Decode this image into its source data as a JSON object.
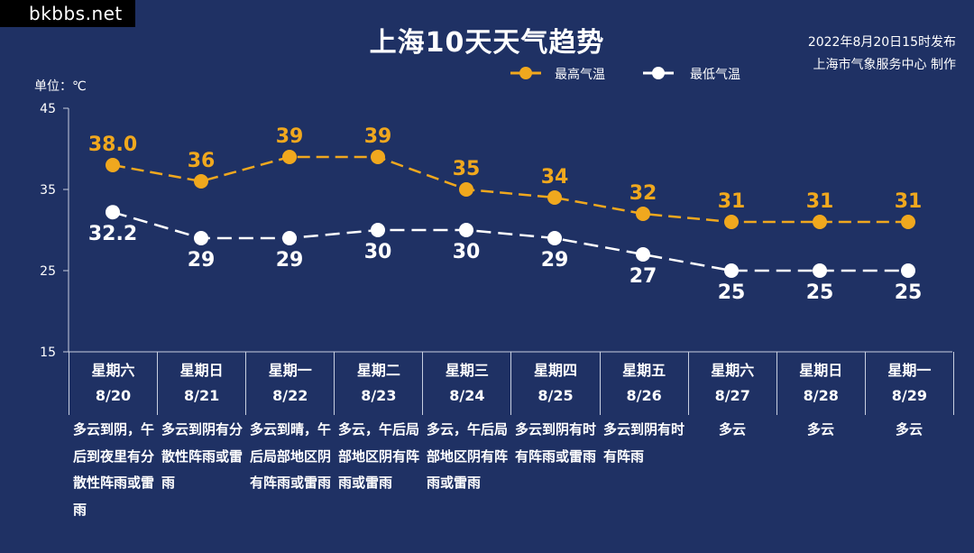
{
  "watermark": "bkbbs.net",
  "title": "上海10天天气趋势",
  "issued": "2022年8月20日15时发布",
  "producer": "上海市气象服务中心 制作",
  "unit_label": "单位：℃",
  "colors": {
    "background": "#1f3164",
    "high": "#f0a81e",
    "low": "#ffffff",
    "axis": "#c8cfe0"
  },
  "chart_data": {
    "type": "line",
    "title": "上海10天天气趋势",
    "ylabel": "单位：℃",
    "ylim": [
      15,
      45
    ],
    "yticks": [
      45,
      35,
      25,
      15
    ],
    "categories": [
      "8/20",
      "8/21",
      "8/22",
      "8/23",
      "8/24",
      "8/25",
      "8/26",
      "8/27",
      "8/28",
      "8/29"
    ],
    "weekdays": [
      "星期六",
      "星期日",
      "星期一",
      "星期二",
      "星期三",
      "星期四",
      "星期五",
      "星期六",
      "星期日",
      "星期一"
    ],
    "series": [
      {
        "name": "最高气温",
        "values": [
          38.0,
          36,
          39,
          39,
          35,
          34,
          32,
          31,
          31,
          31
        ],
        "labels": [
          "38.0",
          "36",
          "39",
          "39",
          "35",
          "34",
          "32",
          "31",
          "31",
          "31"
        ],
        "color": "#f0a81e"
      },
      {
        "name": "最低气温",
        "values": [
          32.2,
          29,
          29,
          30,
          30,
          29,
          27,
          25,
          25,
          25
        ],
        "labels": [
          "32.2",
          "29",
          "29",
          "30",
          "30",
          "29",
          "27",
          "25",
          "25",
          "25"
        ],
        "color": "#ffffff"
      }
    ],
    "legend": "top-right",
    "grid": false
  },
  "descriptions": [
    "多云到阴，午后到夜里有分散性阵雨或雷雨",
    "多云到阴有分散性阵雨或雷雨",
    "多云到晴，午后局部地区阴有阵雨或雷雨",
    "多云，午后局部地区阴有阵雨或雷雨",
    "多云，午后局部地区阴有阵雨或雷雨",
    "多云到阴有时有阵雨或雷雨",
    "多云到阴有时有阵雨",
    "多云",
    "多云",
    "多云"
  ]
}
